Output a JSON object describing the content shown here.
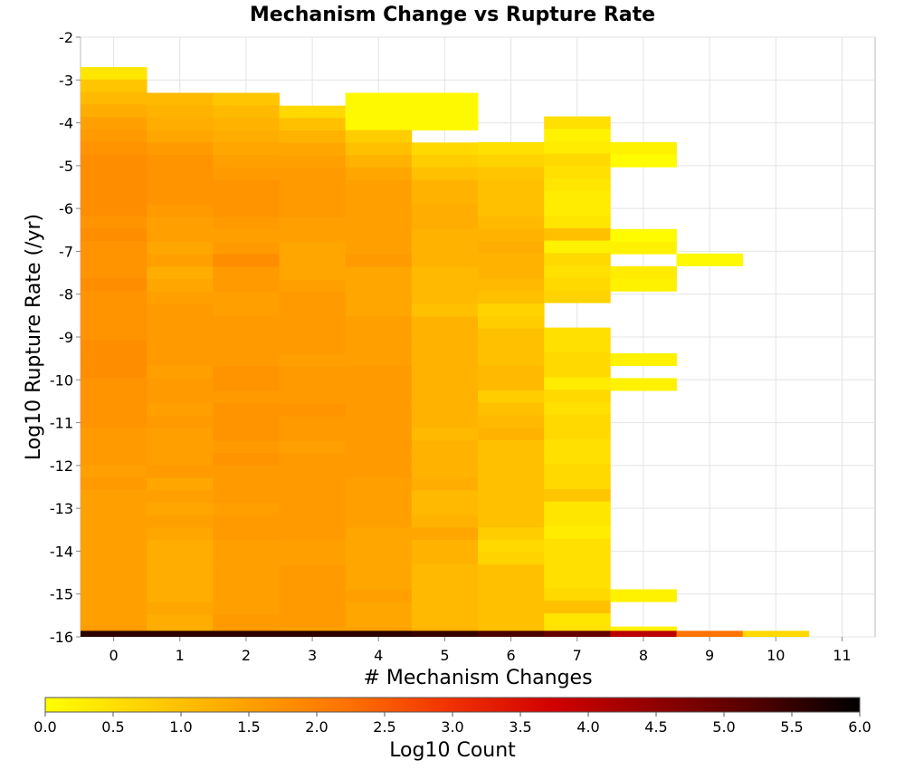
{
  "chart_data": {
    "type": "heatmap",
    "title": "Mechanism Change vs Rupture Rate",
    "xlabel": "# Mechanism Changes",
    "ylabel": "Log10 Rupture Rate (/yr)",
    "xlim": [
      -0.5,
      11.5
    ],
    "ylim": [
      -16,
      -2
    ],
    "x_ticks": [
      "0",
      "1",
      "2",
      "3",
      "4",
      "5",
      "6",
      "7",
      "8",
      "9",
      "10",
      "11"
    ],
    "y_ticks": [
      "-2",
      "-3",
      "-4",
      "-5",
      "-6",
      "-7",
      "-8",
      "-9",
      "-10",
      "-11",
      "-12",
      "-13",
      "-14",
      "-15",
      "-16"
    ],
    "y_bin_width": 0.29,
    "grid": true,
    "colorbar": {
      "label": "Log10 Count",
      "range": [
        0.0,
        6.0
      ],
      "ticks": [
        "0.0",
        "0.5",
        "1.0",
        "1.5",
        "2.0",
        "2.5",
        "3.0",
        "3.5",
        "4.0",
        "4.5",
        "5.0",
        "5.5",
        "6.0"
      ],
      "colors": [
        "#ffff00",
        "#ffd000",
        "#ffa000",
        "#ff7000",
        "#f03000",
        "#d00000",
        "#900000",
        "#500000",
        "#000000"
      ]
    },
    "bottom_row": {
      "y": -16,
      "values": [
        5.6,
        5.6,
        5.6,
        5.6,
        5.6,
        5.5,
        5.3,
        5.0,
        4.0,
        2.2,
        0.6,
        null
      ]
    },
    "columns": [
      {
        "x": 0,
        "top": -2.7,
        "values": [
          0.4,
          0.9,
          1.1,
          1.3,
          1.5,
          1.6,
          1.7,
          1.8,
          1.8,
          1.8,
          1.8,
          1.8,
          1.7,
          1.8,
          1.7,
          1.7,
          1.7,
          1.8,
          1.7,
          1.7,
          1.7,
          1.7,
          1.8,
          1.8,
          1.8,
          1.7,
          1.7,
          1.7,
          1.7,
          1.6,
          1.6,
          1.6,
          1.5,
          1.6,
          1.5,
          1.5,
          1.5,
          1.5,
          1.5,
          1.5,
          1.5,
          1.5,
          1.5,
          1.5,
          1.5,
          1.6,
          1.5,
          1.5
        ]
      },
      {
        "x": 1,
        "top": -3.3,
        "values": [
          1.1,
          1.2,
          1.3,
          1.4,
          1.6,
          1.7,
          1.7,
          1.7,
          1.7,
          1.6,
          1.5,
          1.5,
          1.4,
          1.5,
          1.3,
          1.4,
          1.5,
          1.6,
          1.6,
          1.6,
          1.6,
          1.6,
          1.5,
          1.6,
          1.6,
          1.5,
          1.6,
          1.5,
          1.5,
          1.5,
          1.6,
          1.4,
          1.5,
          1.4,
          1.5,
          1.4,
          1.3,
          1.3,
          1.3,
          1.3,
          1.3,
          1.4,
          1.3,
          1.3,
          1.3
        ]
      },
      {
        "x": 2,
        "top": -3.3,
        "values": [
          0.9,
          1.1,
          1.2,
          1.3,
          1.4,
          1.5,
          1.6,
          1.7,
          1.7,
          1.7,
          1.6,
          1.5,
          1.6,
          1.8,
          1.6,
          1.6,
          1.5,
          1.5,
          1.6,
          1.6,
          1.6,
          1.6,
          1.7,
          1.7,
          1.6,
          1.7,
          1.7,
          1.7,
          1.6,
          1.7,
          1.6,
          1.6,
          1.6,
          1.5,
          1.6,
          1.6,
          1.5,
          1.5,
          1.5,
          1.5,
          1.5,
          1.5,
          1.6,
          1.6,
          1.6
        ]
      },
      {
        "x": 3,
        "top": -3.6,
        "values": [
          0.6,
          1.0,
          1.2,
          1.4,
          1.5,
          1.6,
          1.6,
          1.6,
          1.6,
          1.5,
          1.5,
          1.4,
          1.4,
          1.4,
          1.5,
          1.6,
          1.6,
          1.6,
          1.6,
          1.6,
          1.5,
          1.6,
          1.6,
          1.6,
          1.7,
          1.6,
          1.6,
          1.5,
          1.6,
          1.6,
          1.6,
          1.6,
          1.6,
          1.6,
          1.6,
          1.5,
          1.5,
          1.6,
          1.6,
          1.6,
          1.6,
          1.6,
          1.5,
          1.5,
          1.5
        ]
      },
      {
        "x": 4,
        "top": -3.3,
        "values": [
          0.1,
          0.1,
          0.1,
          0.8,
          1.0,
          1.2,
          1.4,
          1.5,
          1.5,
          1.5,
          1.5,
          1.5,
          1.5,
          1.6,
          1.4,
          1.4,
          1.4,
          1.4,
          1.5,
          1.5,
          1.5,
          1.5,
          1.6,
          1.6,
          1.6,
          1.6,
          1.6,
          1.6,
          1.6,
          1.6,
          1.6,
          1.5,
          1.5,
          1.5,
          1.5,
          1.4,
          1.4,
          1.4,
          1.4,
          1.4,
          1.5,
          1.4,
          1.4,
          1.5
        ]
      },
      {
        "x": 5,
        "top": -3.3,
        "values": [
          0.1,
          0.1,
          0.1,
          null,
          0.6,
          0.8,
          1.0,
          1.2,
          1.2,
          1.3,
          1.3,
          1.2,
          1.2,
          1.2,
          1.1,
          1.1,
          1.1,
          1.0,
          1.2,
          1.2,
          1.2,
          1.2,
          1.2,
          1.2,
          1.2,
          1.2,
          1.2,
          1.1,
          1.2,
          1.2,
          1.2,
          1.3,
          1.1,
          1.1,
          1.2,
          1.4,
          1.2,
          1.2,
          1.1,
          1.1,
          1.1,
          1.1,
          1.1,
          1.2
        ]
      },
      {
        "x": 6,
        "top": -4.45,
        "values": [
          0.5,
          0.7,
          0.9,
          1.0,
          1.0,
          1.0,
          1.1,
          1.2,
          1.3,
          1.2,
          1.2,
          1.1,
          1.0,
          0.7,
          0.8,
          1.0,
          1.0,
          1.0,
          1.1,
          1.1,
          0.8,
          1.0,
          1.1,
          1.2,
          1.0,
          1.0,
          1.0,
          1.0,
          1.0,
          1.0,
          1.0,
          0.8,
          0.6,
          0.7,
          1.0,
          1.0,
          1.0,
          1.0,
          1.0,
          1.0,
          1.0,
          0.8,
          1.0
        ]
      },
      {
        "x": 7,
        "top": -3.85,
        "values": [
          0.5,
          0.2,
          0.3,
          0.6,
          0.5,
          0.4,
          0.3,
          0.3,
          0.4,
          1.0,
          0.2,
          0.6,
          0.5,
          0.6,
          0.7,
          null,
          null,
          0.5,
          0.5,
          0.6,
          0.6,
          0.3,
          0.6,
          0.5,
          0.6,
          0.6,
          0.5,
          0.5,
          0.6,
          0.6,
          0.9,
          0.4,
          0.4,
          0.3,
          0.5,
          0.5,
          0.5,
          0.5,
          0.6,
          1.0,
          0.4,
          0.5,
          0.6,
          0.6,
          0.6
        ]
      },
      {
        "x": 8,
        "top": -4.45,
        "values": [
          0.2,
          0.05,
          null,
          null,
          null,
          null,
          null,
          0.05,
          0.2,
          null,
          0.3,
          0.2,
          null,
          null,
          null,
          null,
          null,
          0.2,
          null,
          0.2,
          null,
          null,
          null,
          null,
          null,
          null,
          null,
          null,
          null,
          null,
          null,
          null,
          null,
          null,
          null,
          null,
          0.2,
          null,
          null,
          0.2
        ]
      },
      {
        "x": 9,
        "top": -7.05,
        "values": [
          0.1
        ]
      }
    ]
  }
}
